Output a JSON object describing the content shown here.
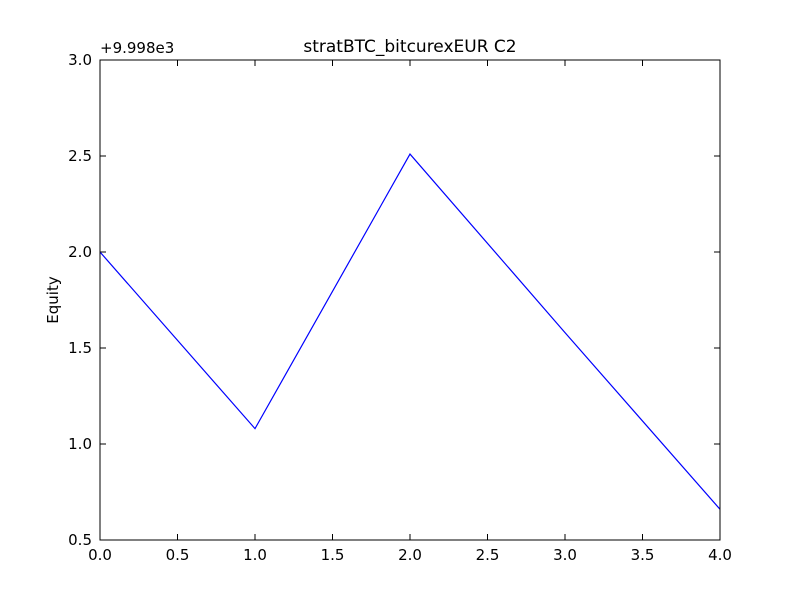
{
  "chart_data": {
    "type": "line",
    "title": "stratBTC_bitcurexEUR C2",
    "xlabel": "",
    "ylabel": "Equity",
    "offset_label": "+9.998e3",
    "xlim": [
      0.0,
      4.0
    ],
    "ylim": [
      0.5,
      3.0
    ],
    "x_ticks": [
      "0.0",
      "0.5",
      "1.0",
      "1.5",
      "2.0",
      "2.5",
      "3.0",
      "3.5",
      "4.0"
    ],
    "y_ticks": [
      "0.5",
      "1.0",
      "1.5",
      "2.0",
      "2.5",
      "3.0"
    ],
    "grid": false,
    "series": [
      {
        "x": [
          0,
          1,
          2,
          3,
          4
        ],
        "y": [
          2.0,
          1.08,
          2.51,
          1.58,
          0.66
        ],
        "color": "#0000ff"
      }
    ]
  }
}
